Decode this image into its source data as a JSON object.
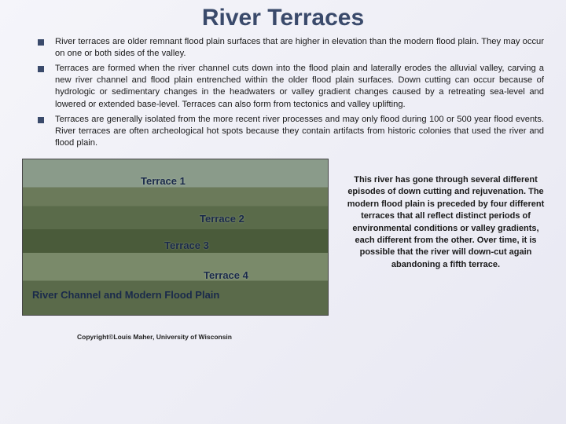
{
  "title": "River Terraces",
  "bullets": [
    "River terraces are older remnant flood plain surfaces that are higher in elevation than the modern flood plain. They may occur on one or both sides of the valley.",
    "Terraces are formed when the river channel cuts down into the flood plain and laterally erodes the alluvial valley, carving a new river channel and flood plain entrenched within the older flood plain surfaces. Down cutting can occur because of hydrologic or sedimentary changes in the headwaters or valley gradient changes caused by a retreating sea-level and lowered or extended base-level. Terraces can also form from tectonics and valley uplifting.",
    "Terraces are generally isolated from the more recent river processes and may only flood during 100 or 500 year flood events. River terraces are often archeological hot spots because they contain artifacts from historic colonies that used the river and flood plain."
  ],
  "photo": {
    "labels": {
      "t1": "Terrace 1",
      "t2": "Terrace 2",
      "t3": "Terrace 3",
      "t4": "Terrace 4"
    },
    "channel": "River Channel and Modern Flood Plain",
    "copyright": "Copyright©Louis Maher, University of Wisconsin"
  },
  "caption": "This river has gone through several different episodes of down cutting and rejuvenation. The modern flood plain is preceded by four different terraces that all reflect distinct periods of environmental conditions or valley gradients, each different from the other. Over time, it is possible that the river will down-cut again abandoning a fifth terrace.",
  "colors": {
    "title_color": "#3a4a6b",
    "text_color": "#1a1a1a",
    "bullet_color": "#3a4a6b",
    "bg_top": "#f5f5fa",
    "bg_bottom": "#e8e8f2"
  }
}
